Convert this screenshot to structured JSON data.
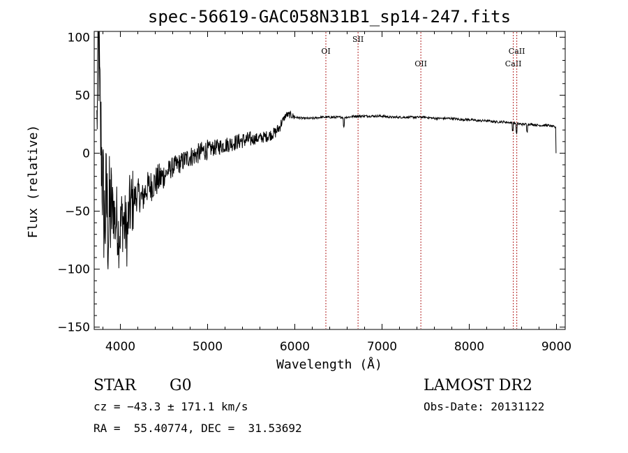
{
  "chart_data": {
    "type": "line",
    "title": "spec-56619-GAC058N31B1_sp14-247.fits",
    "xlabel": "Wavelength (Å)",
    "ylabel": "Flux (relative)",
    "xlim": [
      3700,
      9100
    ],
    "ylim": [
      -152,
      105
    ],
    "xticks": [
      4000,
      5000,
      6000,
      7000,
      8000,
      9000
    ],
    "yticks": [
      100,
      50,
      0,
      -50,
      -100,
      -150
    ],
    "ytick_labels": [
      "100",
      "50",
      "0",
      "−50",
      "−100",
      "−150"
    ],
    "grid": false,
    "series": [
      {
        "color": "#000000",
        "anchors": [
          [
            3730,
            20
          ],
          [
            3740,
            75
          ],
          [
            3750,
            95
          ],
          [
            3760,
            60
          ],
          [
            3770,
            20
          ],
          [
            3780,
            10
          ],
          [
            3800,
            -35
          ],
          [
            3820,
            -60
          ],
          [
            3840,
            -40
          ],
          [
            3860,
            -65
          ],
          [
            3880,
            -50
          ],
          [
            3900,
            -55
          ],
          [
            3920,
            -45
          ],
          [
            3940,
            -60
          ],
          [
            3960,
            -55
          ],
          [
            3980,
            -70
          ],
          [
            4000,
            -65
          ],
          [
            4020,
            -55
          ],
          [
            4040,
            -60
          ],
          [
            4060,
            -65
          ],
          [
            4080,
            -70
          ],
          [
            4100,
            -50
          ],
          [
            4120,
            -45
          ],
          [
            4150,
            -40
          ],
          [
            4200,
            -35
          ],
          [
            4250,
            -40
          ],
          [
            4300,
            -30
          ],
          [
            4350,
            -28
          ],
          [
            4400,
            -25
          ],
          [
            4450,
            -22
          ],
          [
            4500,
            -20
          ],
          [
            4550,
            -15
          ],
          [
            4600,
            -12
          ],
          [
            4650,
            -10
          ],
          [
            4700,
            -8
          ],
          [
            4750,
            -5
          ],
          [
            4800,
            -3
          ],
          [
            4850,
            -2
          ],
          [
            4900,
            0
          ],
          [
            4950,
            2
          ],
          [
            5000,
            3
          ],
          [
            5100,
            5
          ],
          [
            5200,
            7
          ],
          [
            5300,
            9
          ],
          [
            5400,
            11
          ],
          [
            5500,
            12
          ],
          [
            5600,
            13
          ],
          [
            5700,
            15
          ],
          [
            5780,
            18
          ],
          [
            5820,
            22
          ],
          [
            5860,
            28
          ],
          [
            5900,
            33
          ],
          [
            5950,
            33
          ],
          [
            6000,
            31
          ],
          [
            6100,
            30
          ],
          [
            6200,
            30
          ],
          [
            6300,
            31
          ],
          [
            6400,
            31
          ],
          [
            6500,
            31
          ],
          [
            6600,
            31
          ],
          [
            6700,
            32
          ],
          [
            6800,
            32
          ],
          [
            6900,
            32
          ],
          [
            7000,
            32
          ],
          [
            7100,
            31
          ],
          [
            7200,
            31
          ],
          [
            7300,
            31
          ],
          [
            7400,
            31
          ],
          [
            7500,
            31
          ],
          [
            7600,
            30
          ],
          [
            7700,
            30
          ],
          [
            7800,
            30
          ],
          [
            7900,
            29
          ],
          [
            8000,
            29
          ],
          [
            8100,
            28
          ],
          [
            8200,
            28
          ],
          [
            8300,
            27
          ],
          [
            8400,
            27
          ],
          [
            8500,
            26
          ],
          [
            8600,
            25
          ],
          [
            8700,
            25
          ],
          [
            8800,
            24
          ],
          [
            8900,
            24
          ],
          [
            8960,
            23
          ],
          [
            8990,
            22
          ]
        ],
        "noise_bands": [
          [
            3730,
            3900,
            55
          ],
          [
            3900,
            4150,
            30
          ],
          [
            4150,
            4500,
            14
          ],
          [
            4500,
            5000,
            9
          ],
          [
            5000,
            5500,
            7
          ],
          [
            5500,
            5850,
            5
          ],
          [
            5850,
            6000,
            3
          ],
          [
            6000,
            9000,
            1
          ]
        ],
        "absorption_dips": [
          [
            6563,
            8
          ],
          [
            8498,
            6
          ],
          [
            8542,
            8
          ],
          [
            8662,
            6
          ]
        ]
      }
    ],
    "line_markers": [
      {
        "wavelength": 6356,
        "label": "OI",
        "row": "upper"
      },
      {
        "wavelength": 6725,
        "label": "SII",
        "row": "top"
      },
      {
        "wavelength": 7445,
        "label": "OII",
        "row": "lower"
      },
      {
        "wavelength": 8505,
        "label": "CaII",
        "row": "lower"
      },
      {
        "wavelength": 8545,
        "label": "CaII",
        "row": "upper"
      }
    ],
    "marker_color": "#b22222"
  },
  "info": {
    "object_type": "STAR",
    "subclass": "G0",
    "survey": "LAMOST DR2",
    "cz": "cz = −43.3 ± 171.1 km/s",
    "obs_date": "Obs-Date: 20131122",
    "coords": "RA =  55.40774, DEC =  31.53692"
  }
}
